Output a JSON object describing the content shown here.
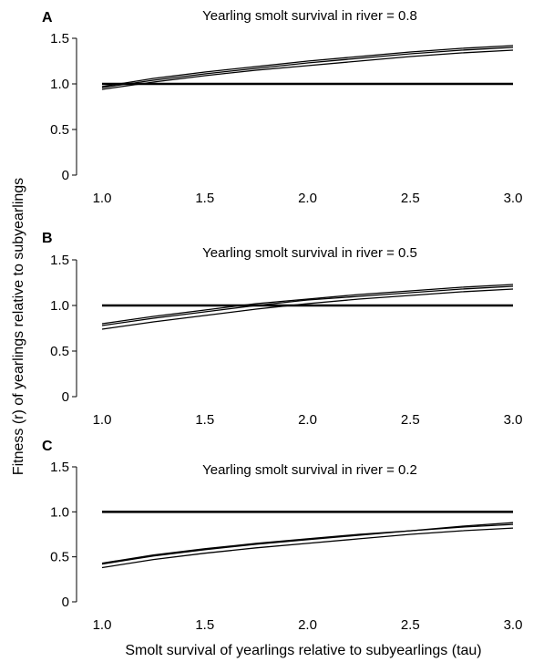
{
  "figure": {
    "ylabel": "Fitness (r) of yearlings relative to subyearlings",
    "xlabel": "Smolt survival of yearlings relative to subyearlings (tau)"
  },
  "chart_data": [
    {
      "type": "line",
      "panel": "A",
      "title": "Yearling smolt survival in river = 0.8",
      "xlim": [
        1.0,
        3.0
      ],
      "ylim": [
        0,
        1.5
      ],
      "x_ticks": [
        "1.0",
        "1.5",
        "2.0",
        "2.5",
        "3.0"
      ],
      "y_ticks": [
        "0",
        "0.5",
        "1.0",
        "1.5"
      ],
      "grid": false,
      "x": [
        1.0,
        1.25,
        1.5,
        1.75,
        2.0,
        2.25,
        2.5,
        2.75,
        3.0
      ],
      "series": [
        {
          "values": [
            1.0,
            1.0,
            1.0,
            1.0,
            1.0,
            1.0,
            1.0,
            1.0,
            1.0
          ],
          "weight": "bold"
        },
        {
          "values": [
            0.97,
            1.06,
            1.13,
            1.19,
            1.25,
            1.3,
            1.35,
            1.39,
            1.42
          ],
          "weight": "thin"
        },
        {
          "values": [
            0.96,
            1.04,
            1.11,
            1.17,
            1.23,
            1.28,
            1.33,
            1.37,
            1.4
          ],
          "weight": "thin"
        },
        {
          "values": [
            0.94,
            1.02,
            1.09,
            1.15,
            1.2,
            1.25,
            1.3,
            1.34,
            1.37
          ],
          "weight": "thin"
        }
      ]
    },
    {
      "type": "line",
      "panel": "B",
      "title": "Yearling smolt survival in river = 0.5",
      "xlim": [
        1.0,
        3.0
      ],
      "ylim": [
        0,
        1.5
      ],
      "x_ticks": [
        "1.0",
        "1.5",
        "2.0",
        "2.5",
        "3.0"
      ],
      "y_ticks": [
        "0",
        "0.5",
        "1.0",
        "1.5"
      ],
      "grid": false,
      "x": [
        1.0,
        1.25,
        1.5,
        1.75,
        2.0,
        2.25,
        2.5,
        2.75,
        3.0
      ],
      "series": [
        {
          "values": [
            1.0,
            1.0,
            1.0,
            1.0,
            1.0,
            1.0,
            1.0,
            1.0,
            1.0
          ],
          "weight": "bold"
        },
        {
          "values": [
            0.8,
            0.88,
            0.95,
            1.02,
            1.07,
            1.12,
            1.16,
            1.2,
            1.23
          ],
          "weight": "thin"
        },
        {
          "values": [
            0.78,
            0.86,
            0.93,
            1.0,
            1.06,
            1.1,
            1.14,
            1.18,
            1.21
          ],
          "weight": "thin"
        },
        {
          "values": [
            0.74,
            0.82,
            0.89,
            0.96,
            1.02,
            1.07,
            1.11,
            1.15,
            1.18
          ],
          "weight": "thin"
        }
      ]
    },
    {
      "type": "line",
      "panel": "C",
      "title": "Yearling smolt survival in river = 0.2",
      "xlim": [
        1.0,
        3.0
      ],
      "ylim": [
        0,
        1.5
      ],
      "x_ticks": [
        "1.0",
        "1.5",
        "2.0",
        "2.5",
        "3.0"
      ],
      "y_ticks": [
        "0",
        "0.5",
        "1.0",
        "1.5"
      ],
      "grid": false,
      "x": [
        1.0,
        1.25,
        1.5,
        1.75,
        2.0,
        2.25,
        2.5,
        2.75,
        3.0
      ],
      "series": [
        {
          "values": [
            1.0,
            1.0,
            1.0,
            1.0,
            1.0,
            1.0,
            1.0,
            1.0,
            1.0
          ],
          "weight": "bold"
        },
        {
          "values": [
            0.43,
            0.52,
            0.59,
            0.65,
            0.7,
            0.75,
            0.79,
            0.84,
            0.88
          ],
          "weight": "thin"
        },
        {
          "values": [
            0.42,
            0.51,
            0.58,
            0.64,
            0.69,
            0.74,
            0.79,
            0.83,
            0.86
          ],
          "weight": "thin"
        },
        {
          "values": [
            0.38,
            0.47,
            0.54,
            0.6,
            0.65,
            0.7,
            0.75,
            0.79,
            0.82
          ],
          "weight": "thin"
        }
      ]
    }
  ]
}
